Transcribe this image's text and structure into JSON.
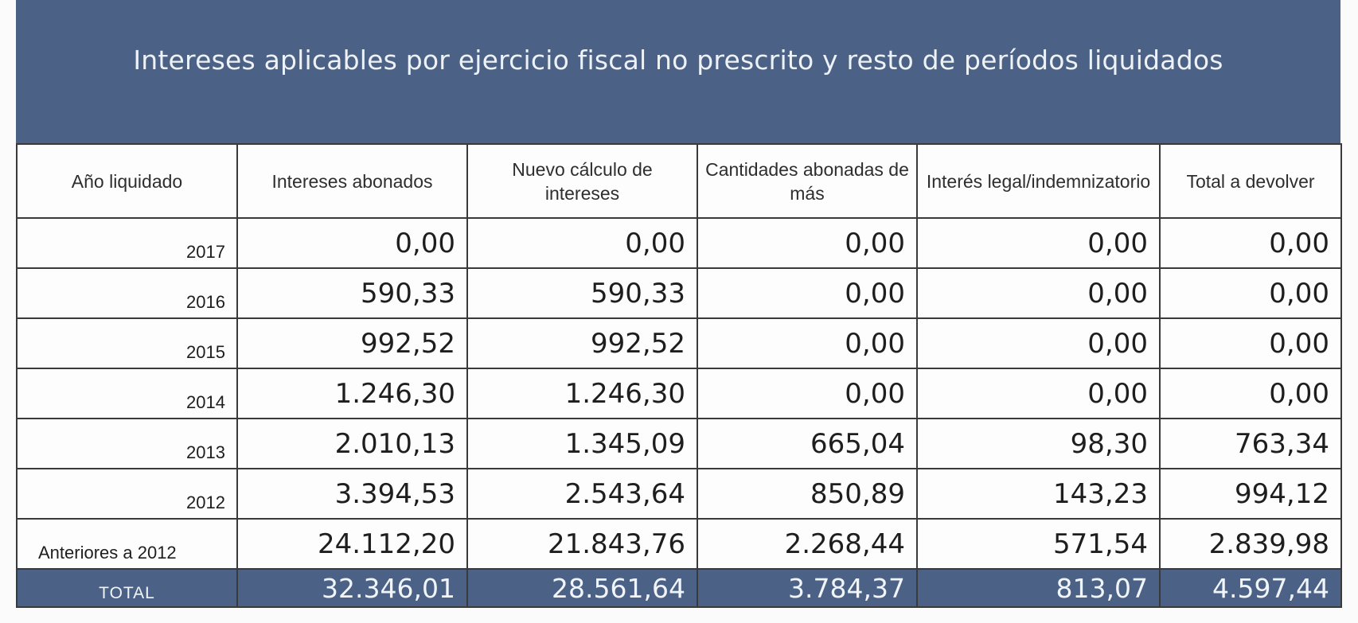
{
  "title": "Intereses aplicables por ejercicio fiscal no prescrito y resto de períodos liquidados",
  "colors": {
    "header_blue": "#4b6286",
    "cell_background": "#fdfdfd",
    "border": "#3a3a3a"
  },
  "table": {
    "headers": [
      "Año liquidado",
      "Intereses abonados",
      "Nuevo cálculo de intereses",
      "Cantidades abonadas de más",
      "Interés legal/indemnizatorio",
      "Total a devolver"
    ],
    "rows": [
      {
        "year": "2017",
        "values": [
          "0,00",
          "0,00",
          "0,00",
          "0,00",
          "0,00"
        ]
      },
      {
        "year": "2016",
        "values": [
          "590,33",
          "590,33",
          "0,00",
          "0,00",
          "0,00"
        ]
      },
      {
        "year": "2015",
        "values": [
          "992,52",
          "992,52",
          "0,00",
          "0,00",
          "0,00"
        ]
      },
      {
        "year": "2014",
        "values": [
          "1.246,30",
          "1.246,30",
          "0,00",
          "0,00",
          "0,00"
        ]
      },
      {
        "year": "2013",
        "values": [
          "2.010,13",
          "1.345,09",
          "665,04",
          "98,30",
          "763,34"
        ]
      },
      {
        "year": "2012",
        "values": [
          "3.394,53",
          "2.543,64",
          "850,89",
          "143,23",
          "994,12"
        ]
      },
      {
        "year": "Anteriores a 2012",
        "values": [
          "24.112,20",
          "21.843,76",
          "2.268,44",
          "571,54",
          "2.839,98"
        ]
      }
    ],
    "total": {
      "label": "TOTAL",
      "values": [
        "32.346,01",
        "28.561,64",
        "3.784,37",
        "813,07",
        "4.597,44"
      ]
    }
  }
}
